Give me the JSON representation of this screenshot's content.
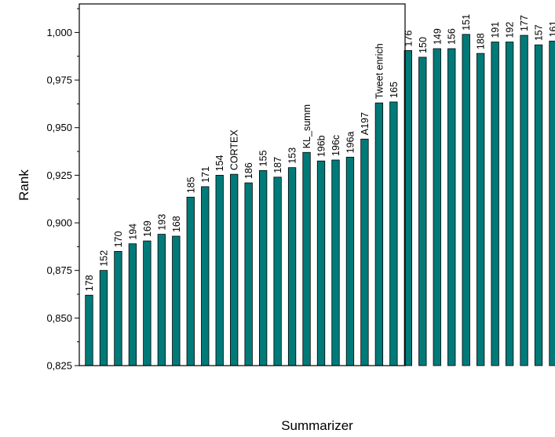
{
  "chart_data": {
    "type": "bar",
    "xlabel": "Summarizer",
    "ylabel": "Rank",
    "ylim": [
      0.825,
      1.015
    ],
    "yticks": [
      "0,825",
      "0,850",
      "0,875",
      "0,900",
      "0,925",
      "0,950",
      "0,975",
      "1,000"
    ],
    "grid": false,
    "bar_color": "#007a78",
    "categories": [
      "178",
      "152",
      "170",
      "194",
      "169",
      "193",
      "168",
      "185",
      "171",
      "154",
      "CORTEX",
      "186",
      "155",
      "187",
      "153",
      "KL_summ",
      "196b",
      "196c",
      "196a",
      "A197",
      "Tweet enrich",
      "165",
      "176",
      "150",
      "149",
      "156",
      "151",
      "188",
      "191",
      "192",
      "177",
      "157",
      "161"
    ],
    "values": [
      0.862,
      0.875,
      0.885,
      0.889,
      0.8905,
      0.894,
      0.893,
      0.9135,
      0.919,
      0.925,
      0.9255,
      0.921,
      0.9275,
      0.924,
      0.929,
      0.937,
      0.9325,
      0.933,
      0.9345,
      0.944,
      0.963,
      0.9635,
      0.9905,
      0.987,
      0.9915,
      0.9915,
      0.999,
      0.989,
      0.995,
      0.995,
      0.9985,
      0.9935,
      0.9955
    ]
  }
}
